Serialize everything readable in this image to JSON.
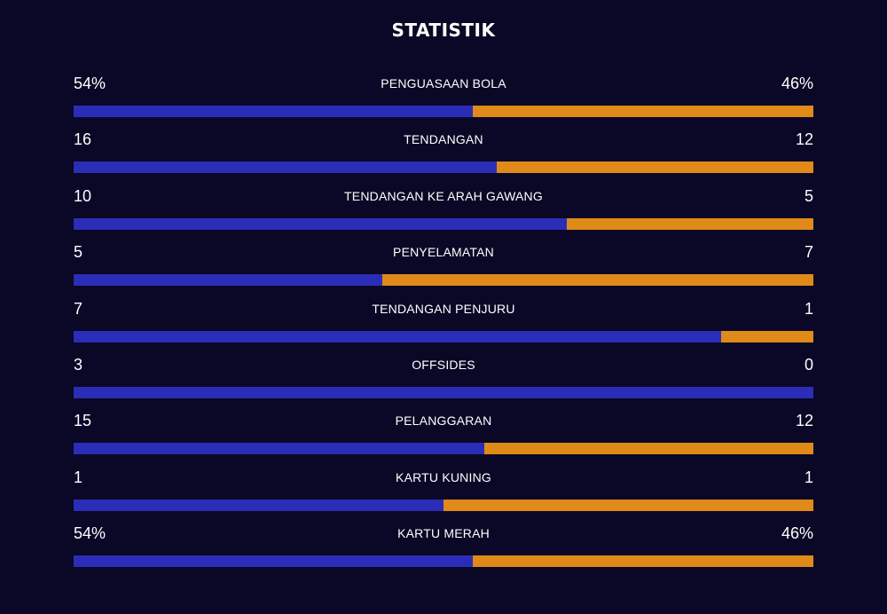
{
  "title": "STATISTIK",
  "colors": {
    "background": "#0a0826",
    "home_bar": "#2b2db8",
    "away_bar": "#df8a19",
    "text": "#ffffff"
  },
  "stats": [
    {
      "label": "PENGUASAAN BOLA",
      "home": "54%",
      "away": "46%",
      "home_value": 54,
      "away_value": 46
    },
    {
      "label": "TENDANGAN",
      "home": "16",
      "away": "12",
      "home_value": 16,
      "away_value": 12
    },
    {
      "label": "TENDANGAN KE ARAH GAWANG",
      "home": "10",
      "away": "5",
      "home_value": 10,
      "away_value": 5
    },
    {
      "label": "PENYELAMATAN",
      "home": "5",
      "away": "7",
      "home_value": 5,
      "away_value": 7
    },
    {
      "label": "TENDANGAN PENJURU",
      "home": "7",
      "away": "1",
      "home_value": 7,
      "away_value": 1
    },
    {
      "label": "OFFSIDES",
      "home": "3",
      "away": "0",
      "home_value": 3,
      "away_value": 0
    },
    {
      "label": "PELANGGARAN",
      "home": "15",
      "away": "12",
      "home_value": 15,
      "away_value": 12
    },
    {
      "label": "KARTU KUNING",
      "home": "1",
      "away": "1",
      "home_value": 1,
      "away_value": 1
    },
    {
      "label": "KARTU MERAH",
      "home": "54%",
      "away": "46%",
      "home_value": 54,
      "away_value": 46
    }
  ]
}
